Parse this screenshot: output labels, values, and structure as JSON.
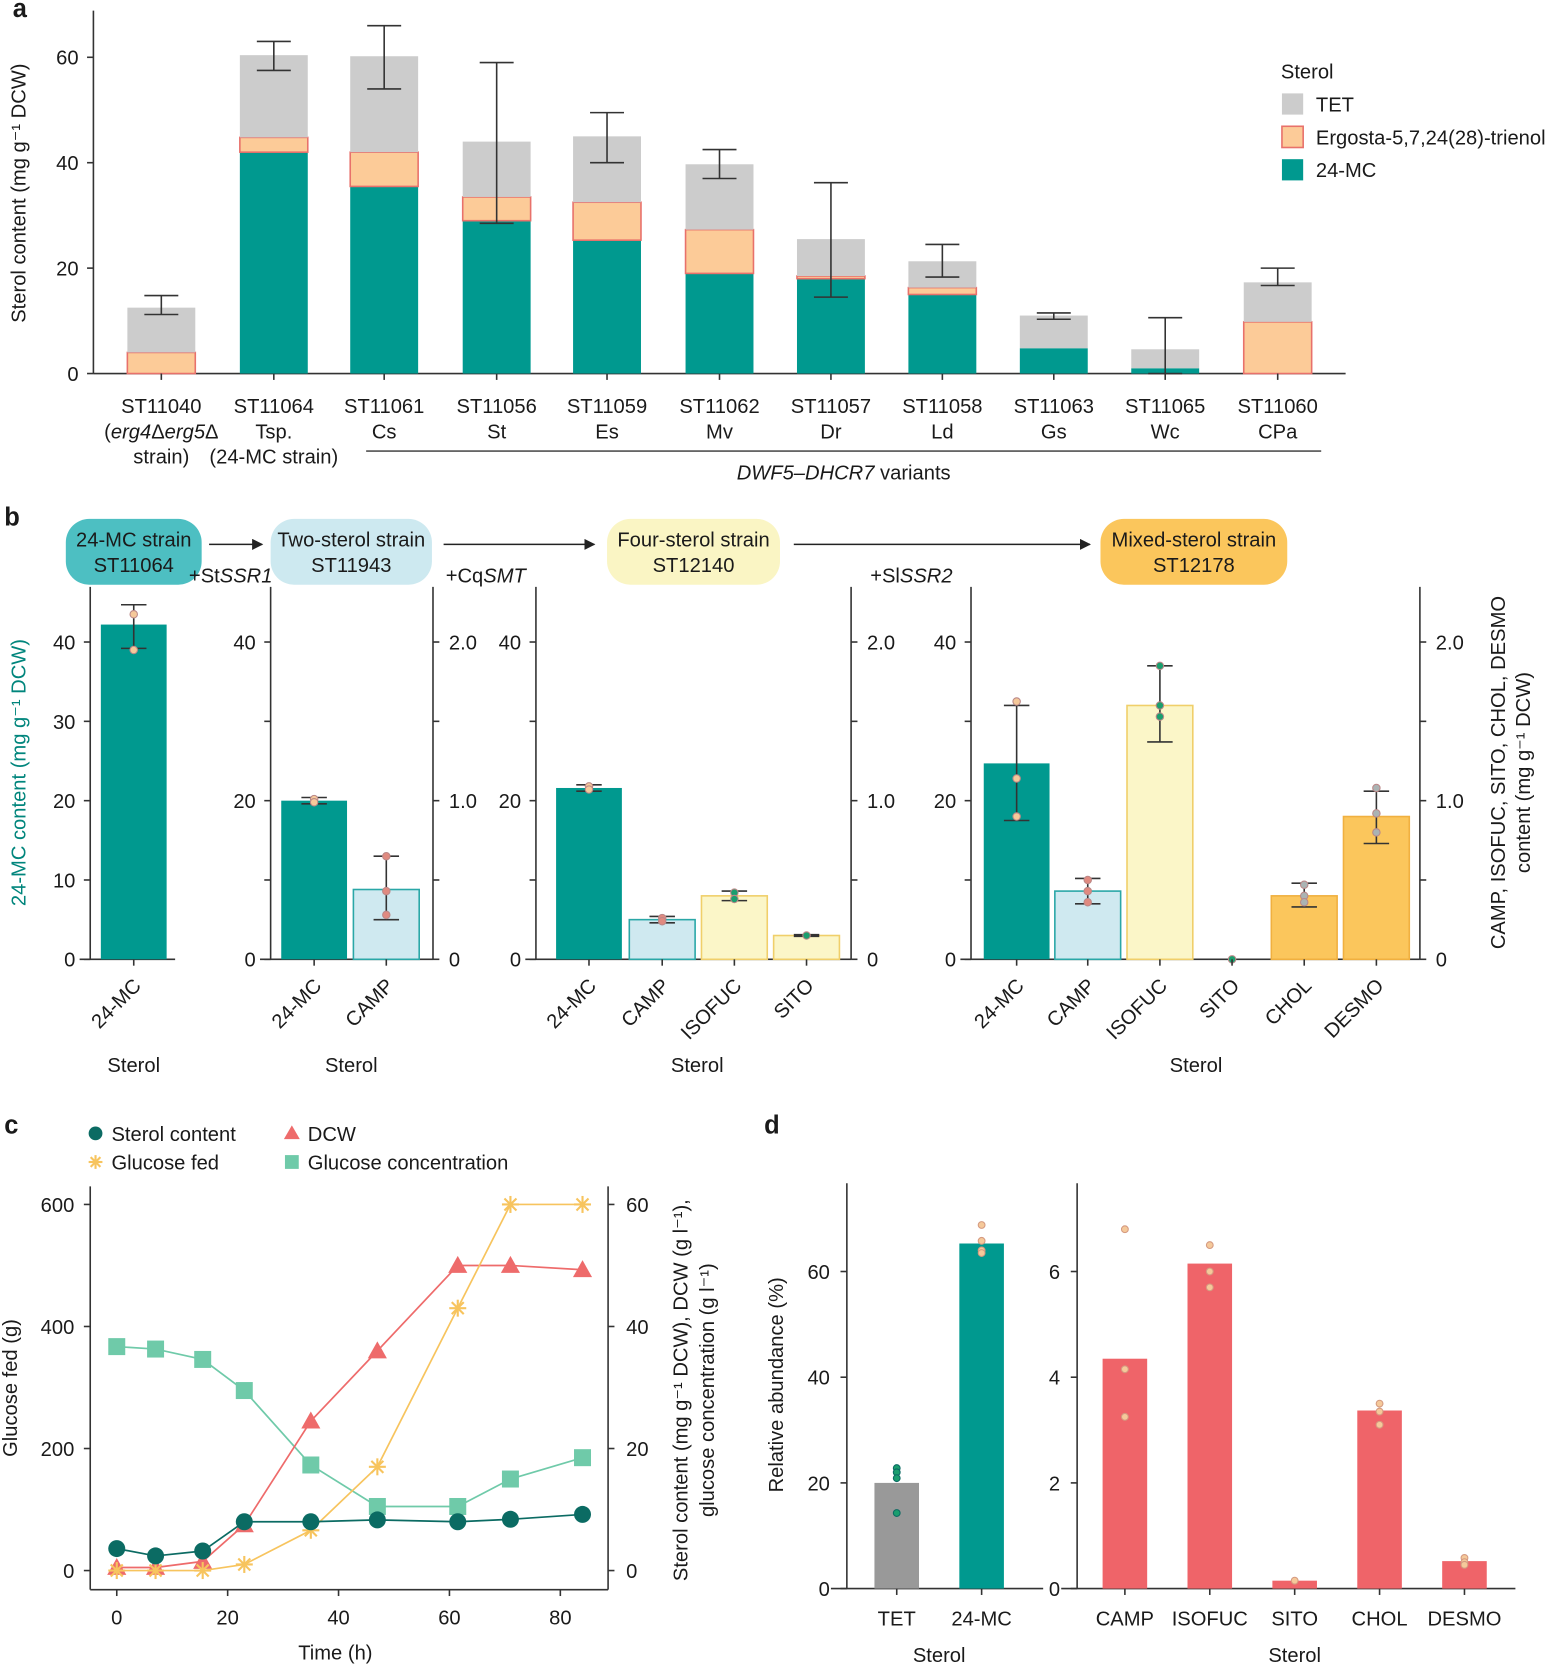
{
  "panel_letters": {
    "a": "a",
    "b": "b",
    "c": "c",
    "d": "d"
  },
  "chart_data": [
    {
      "panel": "a",
      "type": "bar",
      "stacked": true,
      "ylabel": "Sterol content (mg g⁻¹ DCW)",
      "ylim": [
        0,
        68
      ],
      "yticks": [
        "0",
        "20",
        "40",
        "60"
      ],
      "legend": {
        "title": "Sterol",
        "placement": "top-right",
        "entries": [
          "TET",
          "Ergosta-5,7,24(28)-trienol",
          "24-MC"
        ]
      },
      "colors": {
        "TET": "#cccccc",
        "Ergosta": "#fccb98",
        "Ergosta_edge": "#e8716b",
        "24-MC": "#00998f"
      },
      "group_label": [
        {
          "t": "DWF5–DHCR7",
          "i": true
        },
        {
          "t": " variants"
        }
      ],
      "categories": [
        {
          "label": [
            [
              {
                "t": "ST11040"
              }
            ],
            [
              {
                "t": "("
              },
              {
                "t": "erg4",
                "i": true
              },
              {
                "t": "Δ"
              },
              {
                "t": "erg5",
                "i": true
              },
              {
                "t": "Δ"
              }
            ],
            [
              {
                "t": "strain)"
              }
            ]
          ],
          "mc24": 0,
          "ergosta": 4,
          "tet": 8.5,
          "err": [
            11.2,
            14.8
          ]
        },
        {
          "label": [
            [
              {
                "t": "ST11064"
              }
            ],
            [
              {
                "t": "Tsp."
              }
            ],
            [
              {
                "t": "(24-MC strain)"
              }
            ]
          ],
          "mc24": 42,
          "ergosta": 2.8,
          "tet": 15.6,
          "err": [
            57.5,
            63
          ]
        },
        {
          "label": [
            [
              {
                "t": "ST11061"
              }
            ],
            [
              {
                "t": "Cs"
              }
            ]
          ],
          "mc24": 35.5,
          "ergosta": 6.5,
          "tet": 18.2,
          "err": [
            54,
            66
          ]
        },
        {
          "label": [
            [
              {
                "t": "ST11056"
              }
            ],
            [
              {
                "t": "St"
              }
            ]
          ],
          "mc24": 29,
          "ergosta": 4.5,
          "tet": 10.5,
          "err": [
            28.5,
            59
          ]
        },
        {
          "label": [
            [
              {
                "t": "ST11059"
              }
            ],
            [
              {
                "t": "Es"
              }
            ]
          ],
          "mc24": 25.3,
          "ergosta": 7.2,
          "tet": 12.5,
          "err": [
            40,
            49.5
          ]
        },
        {
          "label": [
            [
              {
                "t": "ST11062"
              }
            ],
            [
              {
                "t": "Mv"
              }
            ]
          ],
          "mc24": 19,
          "ergosta": 8.3,
          "tet": 12.4,
          "err": [
            37,
            42.5
          ]
        },
        {
          "label": [
            [
              {
                "t": "ST11057"
              }
            ],
            [
              {
                "t": "Dr"
              }
            ]
          ],
          "mc24": 18,
          "ergosta": 0.5,
          "tet": 7,
          "err": [
            14.5,
            36.2
          ]
        },
        {
          "label": [
            [
              {
                "t": "ST11058"
              }
            ],
            [
              {
                "t": "Ld"
              }
            ]
          ],
          "mc24": 15,
          "ergosta": 1.3,
          "tet": 5,
          "err": [
            18.3,
            24.5
          ]
        },
        {
          "label": [
            [
              {
                "t": "ST11063"
              }
            ],
            [
              {
                "t": "Gs"
              }
            ]
          ],
          "mc24": 4.8,
          "ergosta": 0,
          "tet": 6.2,
          "err": [
            10.3,
            11.5
          ]
        },
        {
          "label": [
            [
              {
                "t": "ST11065"
              }
            ],
            [
              {
                "t": "Wc"
              }
            ]
          ],
          "mc24": 1,
          "ergosta": 0,
          "tet": 3.6,
          "err": [
            0,
            10.6
          ]
        },
        {
          "label": [
            [
              {
                "t": "ST11060"
              }
            ],
            [
              {
                "t": "CPa"
              }
            ]
          ],
          "mc24": 0,
          "ergosta": 9.8,
          "tet": 7.5,
          "err": [
            16.7,
            20
          ]
        }
      ]
    },
    {
      "panel": "b",
      "type": "bar",
      "ylabel_left": "24-MC content (mg g⁻¹ DCW)",
      "ylabel_right": [
        "CAMP, ISOFUC, SITO, CHOL, DESMO",
        "content (mg g⁻¹ DCW)"
      ],
      "left_ylim": [
        0,
        47
      ],
      "right_ylim": [
        0,
        2.35
      ],
      "left_ticks": [
        "0",
        "10",
        "20",
        "30",
        "40"
      ],
      "left_ticks_major": [
        "0",
        "20",
        "40"
      ],
      "right_ticks": [
        "0",
        "0.5",
        "1.0",
        "1.5",
        "2.0"
      ],
      "right_ticks_major": [
        "0",
        "1.0",
        "2.0"
      ],
      "xlabel": "Sterol",
      "strains": [
        {
          "name": "24-MC strain",
          "id": "ST11064",
          "color": "#4dbfc2"
        },
        {
          "name": "Two-sterol strain",
          "id": "ST11943",
          "color": "#cde9f0"
        },
        {
          "name": "Four-sterol strain",
          "id": "ST12140",
          "color": "#faf5c4"
        },
        {
          "name": "Mixed-sterol strain",
          "id": "ST12178",
          "color": "#fbc65c"
        }
      ],
      "genes_added": [
        [
          {
            "t": "+St"
          },
          {
            "t": "SSR1",
            "i": true
          }
        ],
        [
          {
            "t": "+Cq"
          },
          {
            "t": "SMT",
            "i": true
          }
        ],
        [
          {
            "t": "+Sl"
          },
          {
            "t": "SSR2",
            "i": true
          }
        ]
      ],
      "sub_panels": [
        {
          "bars": [
            {
              "sterol": "24-MC",
              "axis": "left",
              "value": 42.2,
              "err": [
                39.2,
                44.7
              ],
              "points": [
                43.5,
                39
              ]
            }
          ]
        },
        {
          "bars": [
            {
              "sterol": "24-MC",
              "axis": "left",
              "value": 20,
              "err": [
                19.6,
                20.4
              ],
              "points": [
                20.2,
                19.8
              ]
            },
            {
              "sterol": "CAMP",
              "axis": "right",
              "value": 0.44,
              "err": [
                0.25,
                0.65
              ],
              "points": [
                0.65,
                0.43,
                0.28
              ]
            }
          ]
        },
        {
          "bars": [
            {
              "sterol": "24-MC",
              "axis": "left",
              "value": 21.6,
              "err": [
                21.2,
                22
              ],
              "points": [
                21.8,
                21.4
              ]
            },
            {
              "sterol": "CAMP",
              "axis": "right",
              "value": 0.25,
              "err": [
                0.23,
                0.27
              ],
              "points": [
                0.26,
                0.24
              ]
            },
            {
              "sterol": "ISOFUC",
              "axis": "right",
              "value": 0.4,
              "err": [
                0.37,
                0.43
              ],
              "points": [
                0.42,
                0.38
              ]
            },
            {
              "sterol": "SITO",
              "axis": "right",
              "value": 0.15,
              "err": [
                0.145,
                0.155
              ],
              "points": [
                0.15
              ]
            }
          ]
        },
        {
          "bars": [
            {
              "sterol": "24-MC",
              "axis": "left",
              "value": 24.7,
              "err": [
                17.5,
                32
              ],
              "points": [
                32.5,
                22.8,
                18
              ]
            },
            {
              "sterol": "CAMP",
              "axis": "right",
              "value": 0.43,
              "err": [
                0.35,
                0.51
              ],
              "points": [
                0.5,
                0.43,
                0.36
              ]
            },
            {
              "sterol": "ISOFUC",
              "axis": "right",
              "value": 1.6,
              "err": [
                1.37,
                1.85
              ],
              "points": [
                1.85,
                1.6,
                1.53
              ]
            },
            {
              "sterol": "SITO",
              "axis": "right",
              "value": 0,
              "err": [
                0,
                0
              ],
              "points": [
                0
              ]
            },
            {
              "sterol": "CHOL",
              "axis": "right",
              "value": 0.4,
              "err": [
                0.33,
                0.48
              ],
              "points": [
                0.47,
                0.4,
                0.36
              ]
            },
            {
              "sterol": "DESMO",
              "axis": "right",
              "value": 0.9,
              "err": [
                0.73,
                1.06
              ],
              "points": [
                1.08,
                0.92,
                0.8
              ]
            }
          ]
        }
      ],
      "bar_colors": {
        "24-MC": "#00998f",
        "CAMP": "#cfe9f0",
        "ISOFUC": "#fbf6c8",
        "SITO": "#fbf6c8",
        "CHOL": "#fbc65c",
        "DESMO": "#fbc65c"
      }
    },
    {
      "panel": "c",
      "type": "line",
      "xlabel": "Time (h)",
      "ylabel_left": "Glucose fed (g)",
      "ylabel_right": [
        "Sterol content (mg g⁻¹ DCW), DCW (g l⁻¹),",
        "glucose concentration (g l⁻¹)"
      ],
      "xlim": [
        -2,
        89
      ],
      "xticks": [
        "0",
        "20",
        "40",
        "60",
        "80"
      ],
      "left_ylim": [
        -30,
        630
      ],
      "left_ticks": [
        "0",
        "200",
        "400",
        "600"
      ],
      "right_ticks": [
        "0",
        "20",
        "40",
        "60"
      ],
      "x": [
        0,
        7,
        15.5,
        23,
        35,
        47,
        61.5,
        71,
        84
      ],
      "series": [
        {
          "name": "Sterol content",
          "axis": "right",
          "marker": "circle",
          "color": "#0b6b63",
          "values": [
            3.6,
            2.4,
            3.2,
            8,
            8,
            8.3,
            8,
            8.4,
            9.2
          ]
        },
        {
          "name": "DCW",
          "axis": "right",
          "marker": "triangle",
          "color": "#ee6b6b",
          "values": [
            0.5,
            0.5,
            1.5,
            7.5,
            24.5,
            36,
            50,
            50,
            49.3
          ]
        },
        {
          "name": "Glucose fed",
          "axis": "left",
          "marker": "star",
          "color": "#f7c45e",
          "values": [
            0,
            0,
            0,
            10,
            66,
            170,
            430,
            600,
            600
          ]
        },
        {
          "name": "Glucose concentration",
          "axis": "right",
          "marker": "square",
          "color": "#6fcaa9",
          "values": [
            36.7,
            36.3,
            34.6,
            29.5,
            17.3,
            10.5,
            10.5,
            15,
            18.5
          ]
        }
      ],
      "legend": "top-left"
    },
    {
      "panel": "d",
      "type": "bar",
      "ylabel": "Relative abundance (%)",
      "xlabel": "Sterol",
      "sub_panels": [
        {
          "yticks": [
            "0",
            "20",
            "40",
            "60"
          ],
          "ylim": [
            0,
            77
          ],
          "bars": [
            {
              "sterol": "TET",
              "value": 20,
              "color": "#999999",
              "points": [
                22.8,
                22,
                20.9,
                14.3
              ],
              "point_color": "#1a9e6e"
            },
            {
              "sterol": "24-MC",
              "value": 65.3,
              "color": "#00998f",
              "points": [
                68.8,
                65.8,
                64,
                63.5
              ],
              "point_color": "#f5c99a"
            }
          ]
        },
        {
          "yticks": [
            "0",
            "2",
            "4",
            "6"
          ],
          "ylim": [
            0,
            7.7
          ],
          "bars": [
            {
              "sterol": "CAMP",
              "value": 4.35,
              "color": "#ef6469",
              "points": [
                6.8,
                4.15,
                3.25
              ],
              "point_color": "#f5c99a"
            },
            {
              "sterol": "ISOFUC",
              "value": 6.15,
              "color": "#ef6469",
              "points": [
                6.5,
                6.0,
                5.7
              ],
              "point_color": "#f5c99a"
            },
            {
              "sterol": "SITO",
              "value": 0.15,
              "color": "#ef6469",
              "points": [
                0.15
              ],
              "point_color": "#f5c99a"
            },
            {
              "sterol": "CHOL",
              "value": 3.37,
              "color": "#ef6469",
              "points": [
                3.5,
                3.35,
                3.1
              ],
              "point_color": "#f5c99a"
            },
            {
              "sterol": "DESMO",
              "value": 0.52,
              "color": "#ef6469",
              "points": [
                0.58,
                0.5,
                0.45
              ],
              "point_color": "#f5c99a"
            }
          ]
        }
      ]
    }
  ]
}
